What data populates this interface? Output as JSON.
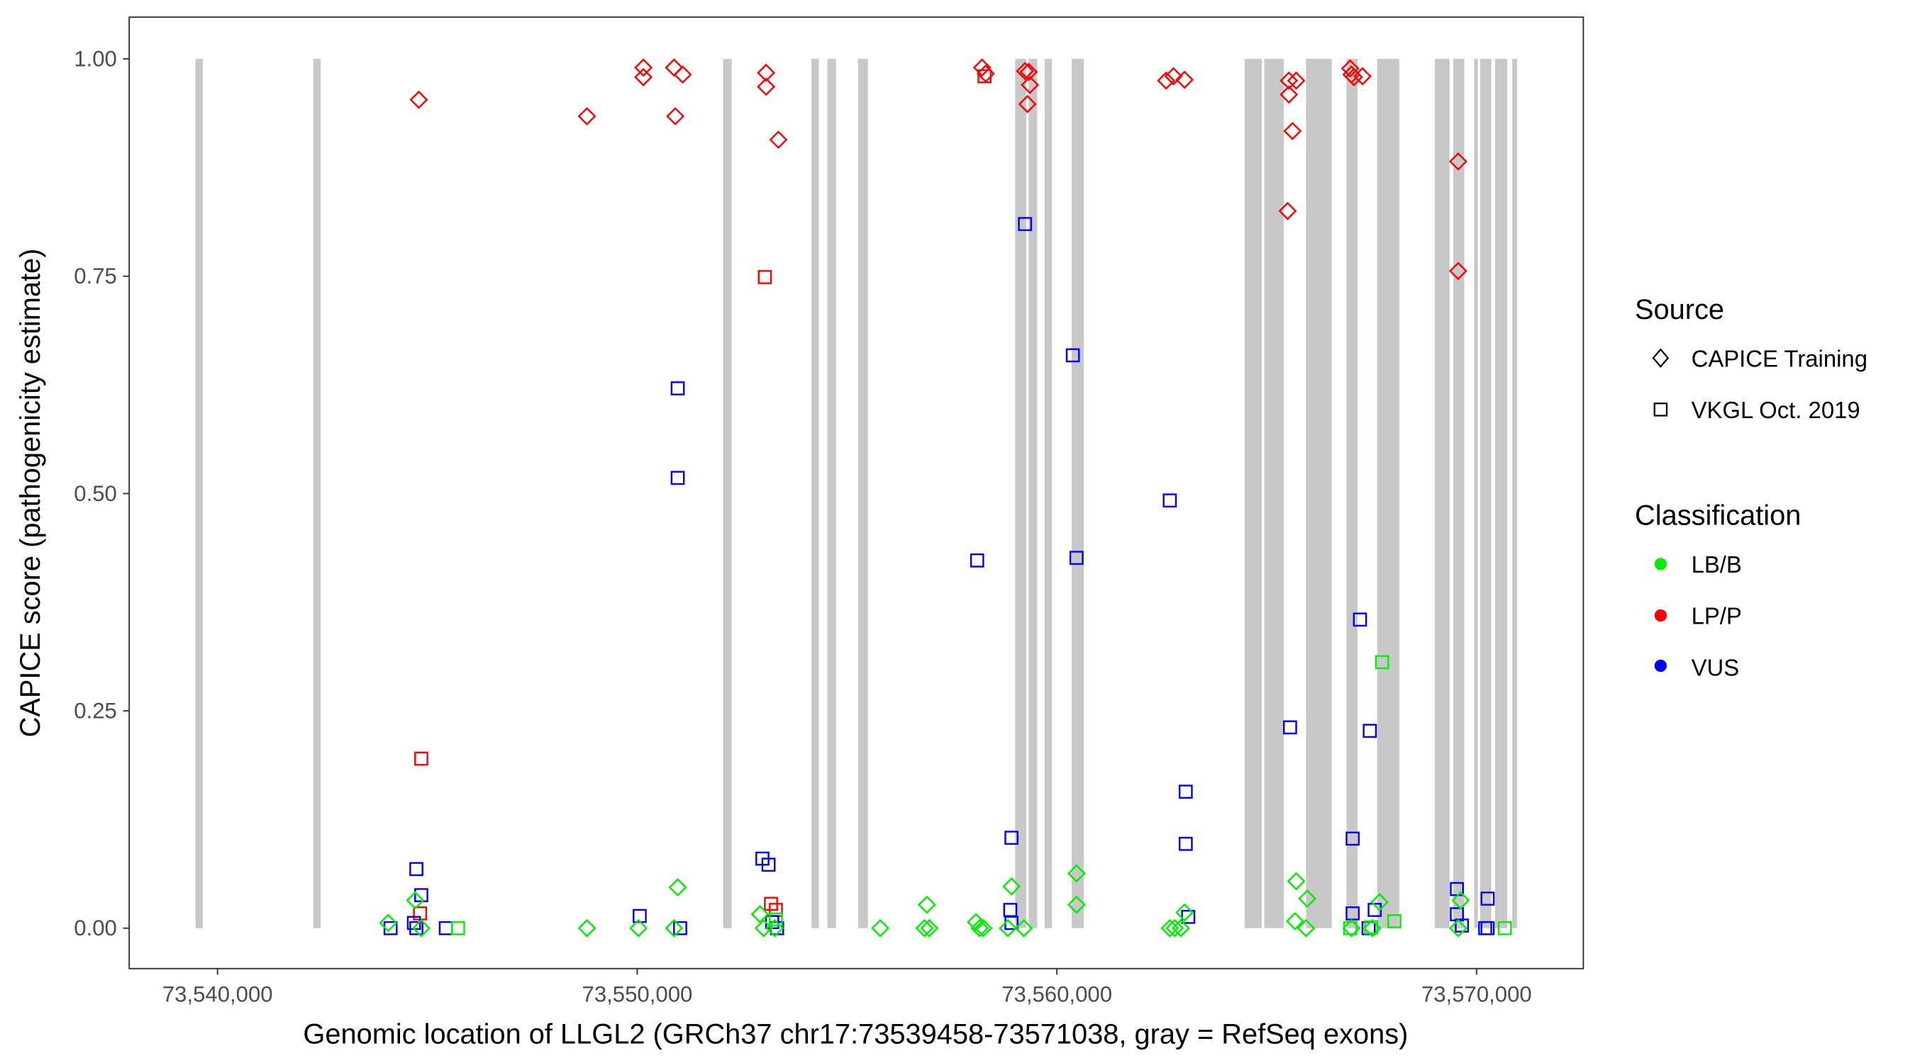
{
  "chart_data": {
    "type": "scatter",
    "xlabel": "Genomic location of LLGL2 (GRCh37 chr17:73539458-73571038, gray = RefSeq exons)",
    "ylabel": "CAPICE score (pathogenicity estimate)",
    "xlim": [
      73537895,
      73572544
    ],
    "ylim": [
      -0.0465,
      1.048
    ],
    "x_ticks": [
      73540000,
      73550000,
      73560000,
      73570000
    ],
    "x_tick_labels": [
      "73,540,000",
      "73,550,000",
      "73,560,000",
      "73,570,000"
    ],
    "y_ticks": [
      0,
      0.25,
      0.5,
      0.75,
      1.0
    ],
    "y_tick_labels": [
      "0.00",
      "0.25",
      "0.50",
      "0.75",
      "1.00"
    ],
    "grid": false,
    "legend_position": "right",
    "legend": {
      "source_title": "Source",
      "source": [
        {
          "label": "CAPICE Training",
          "shape": "diamond"
        },
        {
          "label": "VKGL Oct. 2019",
          "shape": "square"
        }
      ],
      "class_title": "Classification",
      "classes": [
        {
          "label": "LB/B",
          "color": "#00ee00"
        },
        {
          "label": "LP/P",
          "color": "#ff0000"
        },
        {
          "label": "VUS",
          "color": "#0000ff"
        }
      ]
    },
    "exon_color": "#c8c8c8",
    "exons": [
      [
        73539474,
        73539649
      ],
      [
        73542281,
        73542456
      ],
      [
        73552047,
        73552252
      ],
      [
        73554152,
        73554328
      ],
      [
        73554532,
        73554737
      ],
      [
        73555263,
        73555497
      ],
      [
        73559006,
        73559269
      ],
      [
        73559328,
        73559532
      ],
      [
        73559708,
        73559883
      ],
      [
        73560351,
        73560643
      ],
      [
        73564474,
        73564883
      ],
      [
        73564942,
        73565410
      ],
      [
        73565936,
        73566550
      ],
      [
        73566901,
        73567164
      ],
      [
        73567632,
        73568158
      ],
      [
        73569006,
        73569357
      ],
      [
        73569445,
        73569708
      ],
      [
        73569942,
        73570030
      ],
      [
        73570087,
        73570351
      ],
      [
        73570439,
        73570732
      ],
      [
        73570849,
        73570965
      ]
    ],
    "points": [
      {
        "x": 73544795,
        "y": 0.953,
        "source": "CAPICE Training",
        "class": "LP/P"
      },
      {
        "x": 73548801,
        "y": 0.934,
        "source": "CAPICE Training",
        "class": "LP/P"
      },
      {
        "x": 73550146,
        "y": 0.99,
        "source": "CAPICE Training",
        "class": "LP/P"
      },
      {
        "x": 73550146,
        "y": 0.979,
        "source": "CAPICE Training",
        "class": "LP/P"
      },
      {
        "x": 73550877,
        "y": 0.99,
        "source": "CAPICE Training",
        "class": "LP/P"
      },
      {
        "x": 73551082,
        "y": 0.982,
        "source": "CAPICE Training",
        "class": "LP/P"
      },
      {
        "x": 73550907,
        "y": 0.934,
        "source": "CAPICE Training",
        "class": "LP/P"
      },
      {
        "x": 73553070,
        "y": 0.984,
        "source": "CAPICE Training",
        "class": "LP/P"
      },
      {
        "x": 73553070,
        "y": 0.968,
        "source": "CAPICE Training",
        "class": "LP/P"
      },
      {
        "x": 73553363,
        "y": 0.907,
        "source": "CAPICE Training",
        "class": "LP/P"
      },
      {
        "x": 73558217,
        "y": 0.99,
        "source": "CAPICE Training",
        "class": "LP/P"
      },
      {
        "x": 73558304,
        "y": 0.983,
        "source": "CAPICE Training",
        "class": "LP/P"
      },
      {
        "x": 73559240,
        "y": 0.986,
        "source": "CAPICE Training",
        "class": "LP/P"
      },
      {
        "x": 73559328,
        "y": 0.985,
        "source": "CAPICE Training",
        "class": "LP/P"
      },
      {
        "x": 73559357,
        "y": 0.97,
        "source": "CAPICE Training",
        "class": "LP/P"
      },
      {
        "x": 73559298,
        "y": 0.948,
        "source": "CAPICE Training",
        "class": "LP/P"
      },
      {
        "x": 73562603,
        "y": 0.975,
        "source": "CAPICE Training",
        "class": "LP/P"
      },
      {
        "x": 73562778,
        "y": 0.98,
        "source": "CAPICE Training",
        "class": "LP/P"
      },
      {
        "x": 73563041,
        "y": 0.976,
        "source": "CAPICE Training",
        "class": "LP/P"
      },
      {
        "x": 73565527,
        "y": 0.975,
        "source": "CAPICE Training",
        "class": "LP/P"
      },
      {
        "x": 73565702,
        "y": 0.975,
        "source": "CAPICE Training",
        "class": "LP/P"
      },
      {
        "x": 73565527,
        "y": 0.959,
        "source": "CAPICE Training",
        "class": "LP/P"
      },
      {
        "x": 73565614,
        "y": 0.917,
        "source": "CAPICE Training",
        "class": "LP/P"
      },
      {
        "x": 73565497,
        "y": 0.825,
        "source": "CAPICE Training",
        "class": "LP/P"
      },
      {
        "x": 73566989,
        "y": 0.989,
        "source": "CAPICE Training",
        "class": "LP/P"
      },
      {
        "x": 73567018,
        "y": 0.982,
        "source": "CAPICE Training",
        "class": "LP/P"
      },
      {
        "x": 73567077,
        "y": 0.979,
        "source": "CAPICE Training",
        "class": "LP/P"
      },
      {
        "x": 73567281,
        "y": 0.98,
        "source": "CAPICE Training",
        "class": "LP/P"
      },
      {
        "x": 73569562,
        "y": 0.882,
        "source": "CAPICE Training",
        "class": "LP/P"
      },
      {
        "x": 73569562,
        "y": 0.756,
        "source": "CAPICE Training",
        "class": "LP/P"
      },
      {
        "x": 73558275,
        "y": 0.98,
        "source": "VKGL Oct. 2019",
        "class": "LP/P"
      },
      {
        "x": 73553041,
        "y": 0.749,
        "source": "VKGL Oct. 2019",
        "class": "LP/P"
      },
      {
        "x": 73544854,
        "y": 0.195,
        "source": "VKGL Oct. 2019",
        "class": "LP/P"
      },
      {
        "x": 73544825,
        "y": 0.017,
        "source": "VKGL Oct. 2019",
        "class": "LP/P"
      },
      {
        "x": 73553187,
        "y": 0.028,
        "source": "VKGL Oct. 2019",
        "class": "LP/P"
      },
      {
        "x": 73553304,
        "y": 0.021,
        "source": "VKGL Oct. 2019",
        "class": "LP/P"
      },
      {
        "x": 73559240,
        "y": 0.81,
        "source": "VKGL Oct. 2019",
        "class": "VUS"
      },
      {
        "x": 73560380,
        "y": 0.659,
        "source": "VKGL Oct. 2019",
        "class": "VUS"
      },
      {
        "x": 73550965,
        "y": 0.621,
        "source": "VKGL Oct. 2019",
        "class": "VUS"
      },
      {
        "x": 73550965,
        "y": 0.518,
        "source": "VKGL Oct. 2019",
        "class": "VUS"
      },
      {
        "x": 73562690,
        "y": 0.492,
        "source": "VKGL Oct. 2019",
        "class": "VUS"
      },
      {
        "x": 73558100,
        "y": 0.423,
        "source": "VKGL Oct. 2019",
        "class": "VUS"
      },
      {
        "x": 73560468,
        "y": 0.426,
        "source": "VKGL Oct. 2019",
        "class": "VUS"
      },
      {
        "x": 73567222,
        "y": 0.355,
        "source": "VKGL Oct. 2019",
        "class": "VUS"
      },
      {
        "x": 73565556,
        "y": 0.231,
        "source": "VKGL Oct. 2019",
        "class": "VUS"
      },
      {
        "x": 73567456,
        "y": 0.227,
        "source": "VKGL Oct. 2019",
        "class": "VUS"
      },
      {
        "x": 73563070,
        "y": 0.157,
        "source": "VKGL Oct. 2019",
        "class": "VUS"
      },
      {
        "x": 73563070,
        "y": 0.097,
        "source": "VKGL Oct. 2019",
        "class": "VUS"
      },
      {
        "x": 73558918,
        "y": 0.104,
        "source": "VKGL Oct. 2019",
        "class": "VUS"
      },
      {
        "x": 73567047,
        "y": 0.103,
        "source": "VKGL Oct. 2019",
        "class": "VUS"
      },
      {
        "x": 73544737,
        "y": 0.068,
        "source": "VKGL Oct. 2019",
        "class": "VUS"
      },
      {
        "x": 73544854,
        "y": 0.038,
        "source": "VKGL Oct. 2019",
        "class": "VUS"
      },
      {
        "x": 73552983,
        "y": 0.08,
        "source": "VKGL Oct. 2019",
        "class": "VUS"
      },
      {
        "x": 73553129,
        "y": 0.073,
        "source": "VKGL Oct. 2019",
        "class": "VUS"
      },
      {
        "x": 73569532,
        "y": 0.045,
        "source": "VKGL Oct. 2019",
        "class": "VUS"
      },
      {
        "x": 73570263,
        "y": 0.034,
        "source": "VKGL Oct. 2019",
        "class": "VUS"
      },
      {
        "x": 73550059,
        "y": 0.014,
        "source": "VKGL Oct. 2019",
        "class": "VUS"
      },
      {
        "x": 73558889,
        "y": 0.021,
        "source": "VKGL Oct. 2019",
        "class": "VUS"
      },
      {
        "x": 73563129,
        "y": 0.013,
        "source": "VKGL Oct. 2019",
        "class": "VUS"
      },
      {
        "x": 73567047,
        "y": 0.017,
        "source": "VKGL Oct. 2019",
        "class": "VUS"
      },
      {
        "x": 73567573,
        "y": 0.021,
        "source": "VKGL Oct. 2019",
        "class": "VUS"
      },
      {
        "x": 73569532,
        "y": 0.016,
        "source": "VKGL Oct. 2019",
        "class": "VUS"
      },
      {
        "x": 73544123,
        "y": 0.0,
        "source": "VKGL Oct. 2019",
        "class": "VUS"
      },
      {
        "x": 73544679,
        "y": 0.006,
        "source": "VKGL Oct. 2019",
        "class": "VUS"
      },
      {
        "x": 73544737,
        "y": 0.0,
        "source": "VKGL Oct. 2019",
        "class": "VUS"
      },
      {
        "x": 73545439,
        "y": 0.0,
        "source": "VKGL Oct. 2019",
        "class": "VUS"
      },
      {
        "x": 73551023,
        "y": 0.0,
        "source": "VKGL Oct. 2019",
        "class": "VUS"
      },
      {
        "x": 73553216,
        "y": 0.007,
        "source": "VKGL Oct. 2019",
        "class": "VUS"
      },
      {
        "x": 73553333,
        "y": 0.0,
        "source": "VKGL Oct. 2019",
        "class": "VUS"
      },
      {
        "x": 73558918,
        "y": 0.006,
        "source": "VKGL Oct. 2019",
        "class": "VUS"
      },
      {
        "x": 73567427,
        "y": 0.0,
        "source": "VKGL Oct. 2019",
        "class": "VUS"
      },
      {
        "x": 73569650,
        "y": 0.003,
        "source": "VKGL Oct. 2019",
        "class": "VUS"
      },
      {
        "x": 73570205,
        "y": 0.0,
        "source": "VKGL Oct. 2019",
        "class": "VUS"
      },
      {
        "x": 73570263,
        "y": 0.0,
        "source": "VKGL Oct. 2019",
        "class": "VUS"
      },
      {
        "x": 73567749,
        "y": 0.306,
        "source": "VKGL Oct. 2019",
        "class": "LB/B"
      },
      {
        "x": 73568041,
        "y": 0.008,
        "source": "VKGL Oct. 2019",
        "class": "LB/B"
      },
      {
        "x": 73545731,
        "y": 0.0,
        "source": "VKGL Oct. 2019",
        "class": "LB/B"
      },
      {
        "x": 73570673,
        "y": 0.0,
        "source": "VKGL Oct. 2019",
        "class": "LB/B"
      },
      {
        "x": 73566989,
        "y": 0.0,
        "source": "VKGL Oct. 2019",
        "class": "LB/B"
      },
      {
        "x": 73567486,
        "y": 0.001,
        "source": "VKGL Oct. 2019",
        "class": "LB/B"
      },
      {
        "x": 73553304,
        "y": 0.01,
        "source": "VKGL Oct. 2019",
        "class": "LB/B"
      },
      {
        "x": 73550965,
        "y": 0.047,
        "source": "CAPICE Training",
        "class": "LB/B"
      },
      {
        "x": 73560468,
        "y": 0.063,
        "source": "CAPICE Training",
        "class": "LB/B"
      },
      {
        "x": 73560468,
        "y": 0.027,
        "source": "CAPICE Training",
        "class": "LB/B"
      },
      {
        "x": 73558918,
        "y": 0.048,
        "source": "CAPICE Training",
        "class": "LB/B"
      },
      {
        "x": 73556901,
        "y": 0.027,
        "source": "CAPICE Training",
        "class": "LB/B"
      },
      {
        "x": 73565702,
        "y": 0.054,
        "source": "CAPICE Training",
        "class": "LB/B"
      },
      {
        "x": 73565965,
        "y": 0.034,
        "source": "CAPICE Training",
        "class": "LB/B"
      },
      {
        "x": 73567690,
        "y": 0.03,
        "source": "CAPICE Training",
        "class": "LB/B"
      },
      {
        "x": 73569620,
        "y": 0.032,
        "source": "CAPICE Training",
        "class": "LB/B"
      },
      {
        "x": 73544708,
        "y": 0.032,
        "source": "CAPICE Training",
        "class": "LB/B"
      },
      {
        "x": 73563041,
        "y": 0.018,
        "source": "CAPICE Training",
        "class": "LB/B"
      },
      {
        "x": 73552924,
        "y": 0.016,
        "source": "CAPICE Training",
        "class": "LB/B"
      },
      {
        "x": 73544065,
        "y": 0.006,
        "source": "CAPICE Training",
        "class": "LB/B"
      },
      {
        "x": 73548801,
        "y": 0.0,
        "source": "CAPICE Training",
        "class": "LB/B"
      },
      {
        "x": 73550029,
        "y": 0.0,
        "source": "CAPICE Training",
        "class": "LB/B"
      },
      {
        "x": 73550877,
        "y": 0.0,
        "source": "CAPICE Training",
        "class": "LB/B"
      },
      {
        "x": 73555790,
        "y": 0.0,
        "source": "CAPICE Training",
        "class": "LB/B"
      },
      {
        "x": 73556843,
        "y": 0.0,
        "source": "CAPICE Training",
        "class": "LB/B"
      },
      {
        "x": 73556960,
        "y": 0.0,
        "source": "CAPICE Training",
        "class": "LB/B"
      },
      {
        "x": 73558071,
        "y": 0.007,
        "source": "CAPICE Training",
        "class": "LB/B"
      },
      {
        "x": 73558158,
        "y": 0.0,
        "source": "CAPICE Training",
        "class": "LB/B"
      },
      {
        "x": 73558246,
        "y": 0.0,
        "source": "CAPICE Training",
        "class": "LB/B"
      },
      {
        "x": 73558831,
        "y": 0.0,
        "source": "CAPICE Training",
        "class": "LB/B"
      },
      {
        "x": 73559211,
        "y": 0.0,
        "source": "CAPICE Training",
        "class": "LB/B"
      },
      {
        "x": 73562690,
        "y": 0.0,
        "source": "CAPICE Training",
        "class": "LB/B"
      },
      {
        "x": 73562807,
        "y": 0.0,
        "source": "CAPICE Training",
        "class": "LB/B"
      },
      {
        "x": 73562953,
        "y": 0.0,
        "source": "CAPICE Training",
        "class": "LB/B"
      },
      {
        "x": 73565673,
        "y": 0.008,
        "source": "CAPICE Training",
        "class": "LB/B"
      },
      {
        "x": 73565936,
        "y": 0.0,
        "source": "CAPICE Training",
        "class": "LB/B"
      },
      {
        "x": 73567018,
        "y": 0.0,
        "source": "CAPICE Training",
        "class": "LB/B"
      },
      {
        "x": 73567515,
        "y": 0.0,
        "source": "CAPICE Training",
        "class": "LB/B"
      },
      {
        "x": 73569562,
        "y": 0.0,
        "source": "CAPICE Training",
        "class": "LB/B"
      },
      {
        "x": 73553012,
        "y": 0.0,
        "source": "CAPICE Training",
        "class": "LB/B"
      },
      {
        "x": 73553275,
        "y": 0.0,
        "source": "CAPICE Training",
        "class": "LB/B"
      },
      {
        "x": 73544854,
        "y": 0.0,
        "source": "CAPICE Training",
        "class": "LB/B"
      }
    ]
  }
}
